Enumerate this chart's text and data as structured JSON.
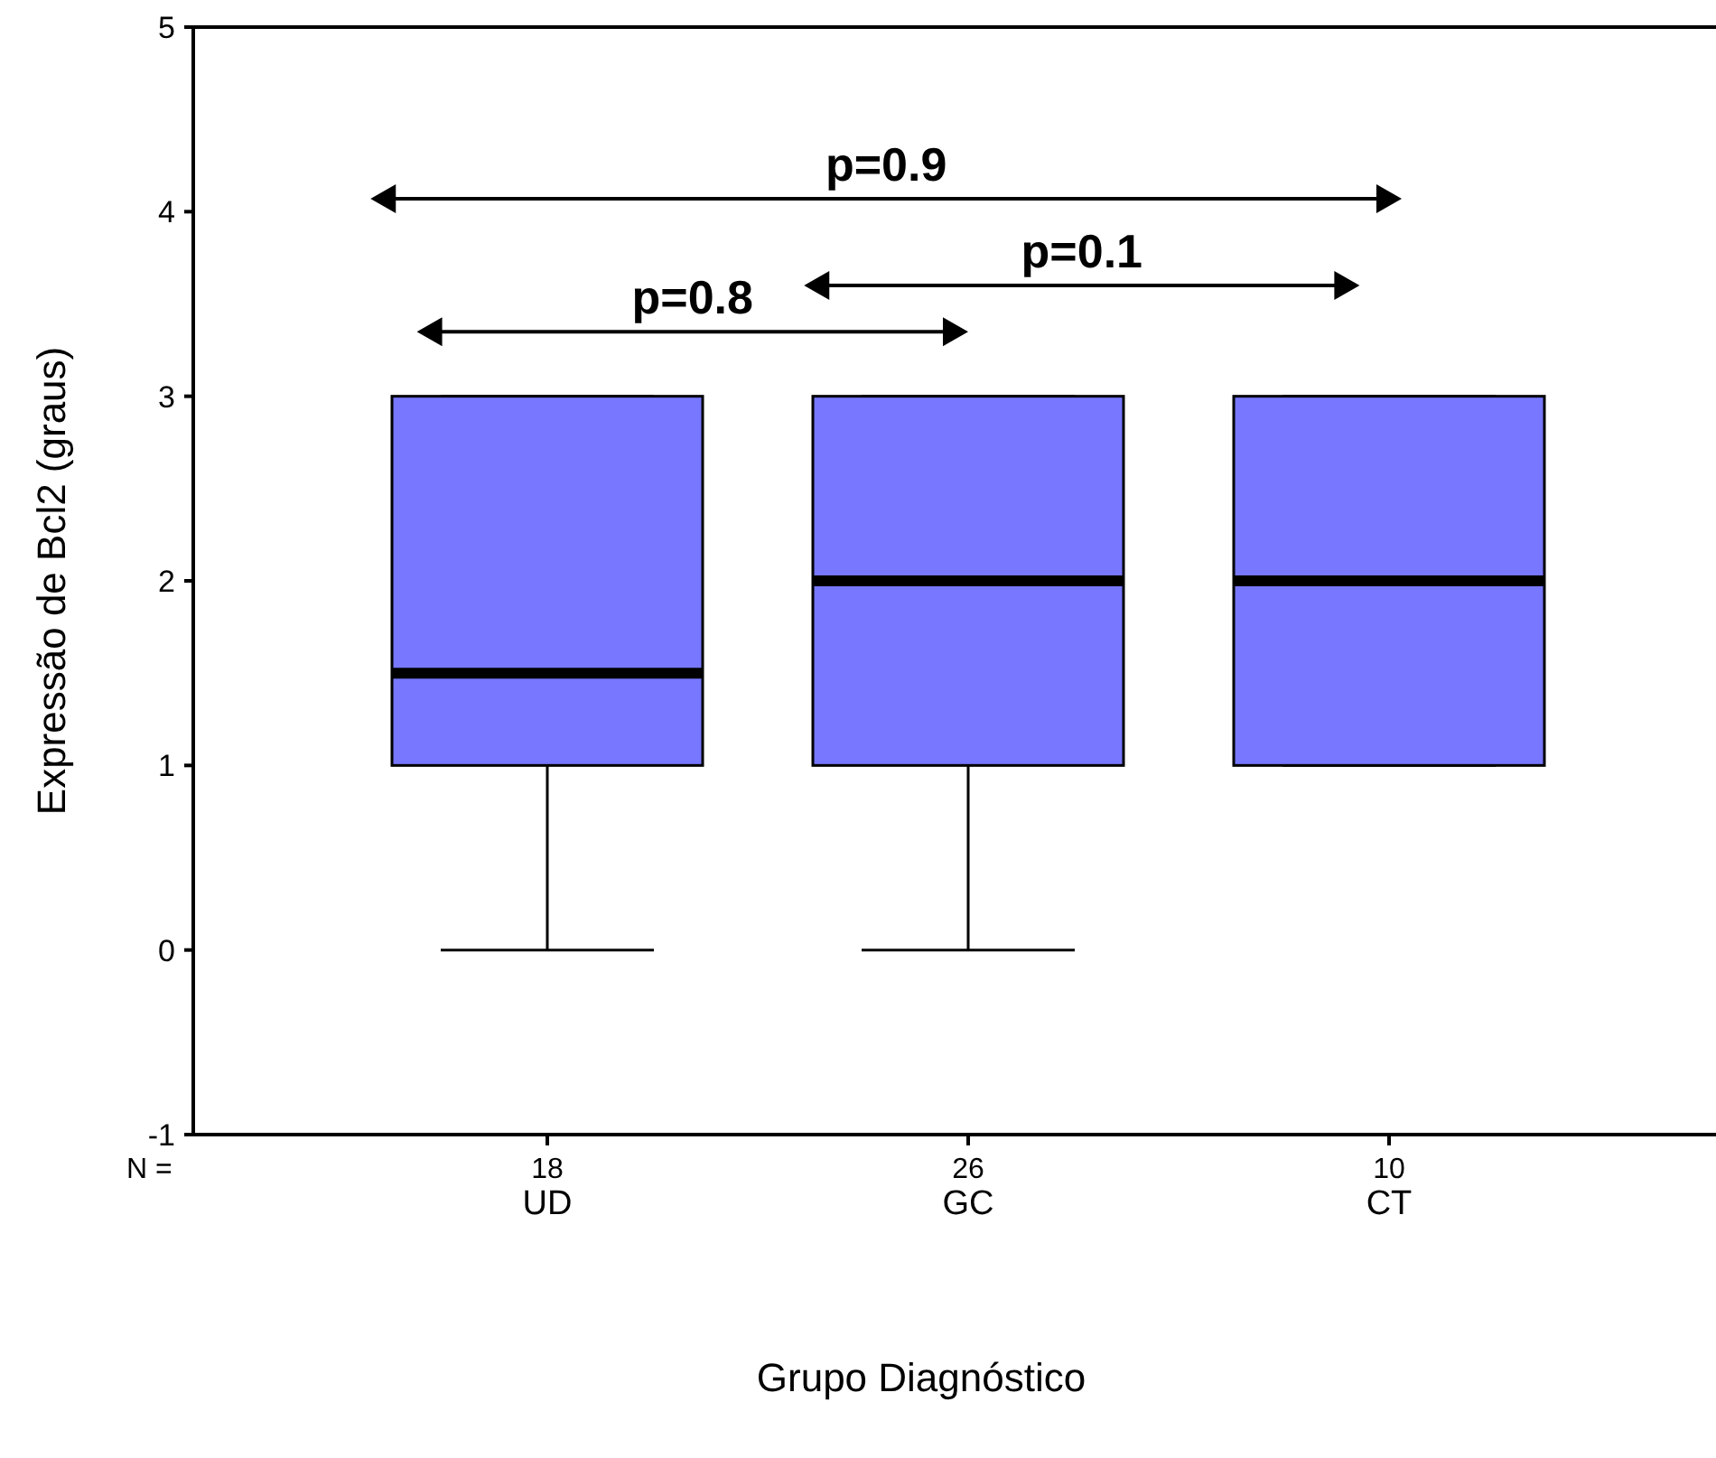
{
  "chart_data": {
    "type": "box",
    "xlabel": "Grupo Diagnóstico",
    "ylabel": "Expressão de Bcl2 (graus)",
    "categories": [
      "UD",
      "GC",
      "CT"
    ],
    "color": "#7777ff",
    "boxes": [
      {
        "low": 0,
        "q1": 1,
        "median": 1.5,
        "q3": 3,
        "high": 3
      },
      {
        "low": 0,
        "q1": 1,
        "median": 2,
        "q3": 3,
        "high": 3
      },
      {
        "low": 1,
        "q1": 1,
        "median": 2,
        "q3": 3,
        "high": 3
      }
    ],
    "ylim": [
      -1,
      5
    ],
    "yticks": [
      -1,
      0,
      1,
      2,
      3,
      4,
      5
    ],
    "grid": false,
    "annotations": [
      "p=0.9",
      "p=0.8",
      "p=0.1",
      "N =",
      "18",
      "26",
      "10"
    ]
  }
}
